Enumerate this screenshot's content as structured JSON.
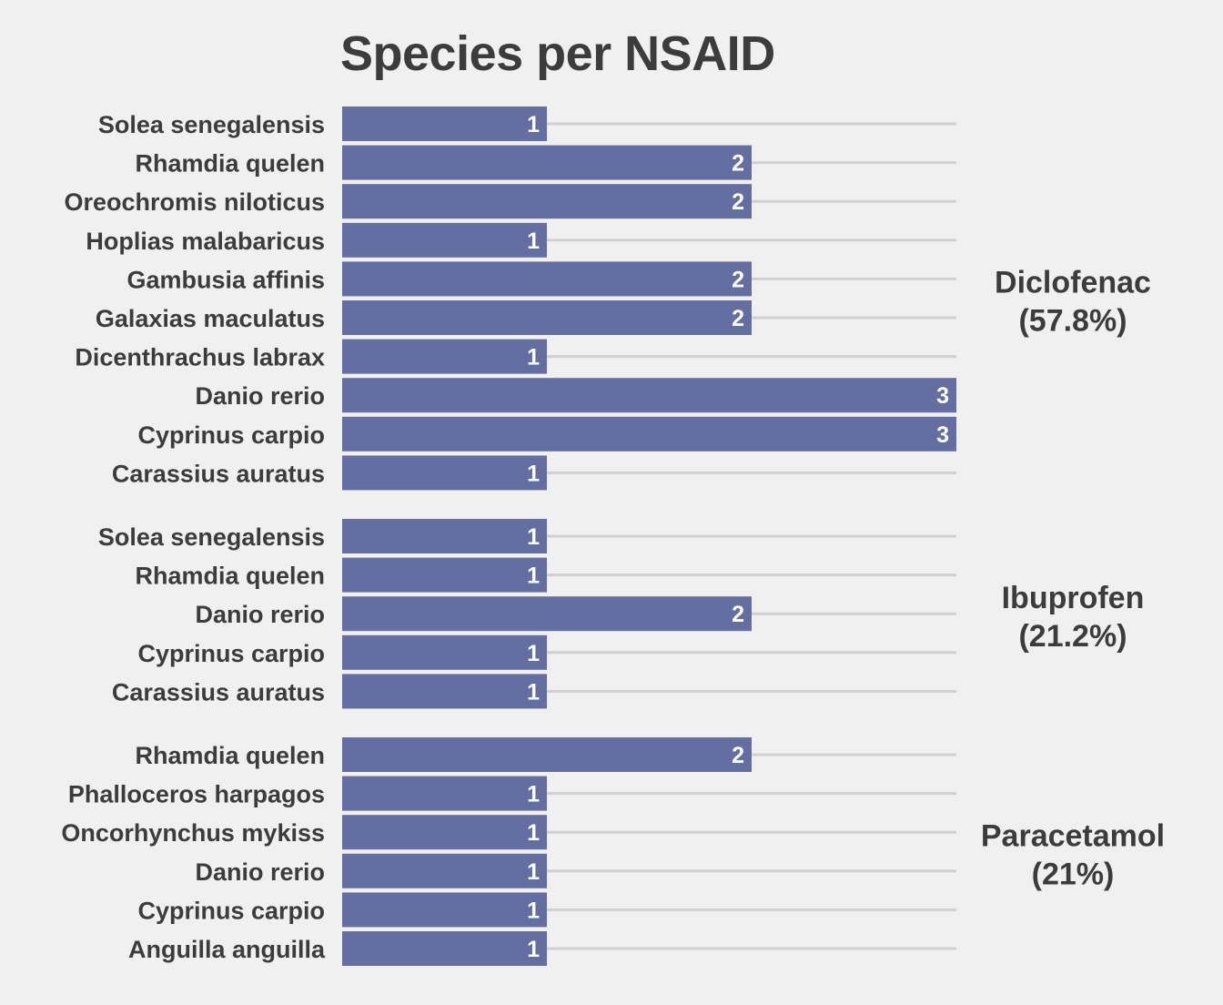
{
  "chart_data": {
    "type": "bar",
    "orientation": "horizontal",
    "title": "Species per NSAID",
    "xlim": [
      0,
      3
    ],
    "grid": "horizontal-guides",
    "colors": {
      "bar": "#646ea0",
      "grid": "#d0d0d0",
      "text": "#3c3c3c",
      "background": "#f0f0f0"
    },
    "groups": [
      {
        "name": "Diclofenac",
        "share": "(57.8%)",
        "categories": [
          "Solea senegalensis",
          "Rhamdia quelen",
          "Oreochromis niloticus",
          "Hoplias malabaricus",
          "Gambusia affinis",
          "Galaxias maculatus",
          "Dicenthrachus labrax",
          "Danio rerio",
          "Cyprinus carpio",
          "Carassius auratus"
        ],
        "values": [
          1,
          2,
          2,
          1,
          2,
          2,
          1,
          3,
          3,
          1
        ]
      },
      {
        "name": "Ibuprofen",
        "share": "(21.2%)",
        "categories": [
          "Solea senegalensis",
          "Rhamdia quelen",
          "Danio rerio",
          "Cyprinus carpio",
          "Carassius auratus"
        ],
        "values": [
          1,
          1,
          2,
          1,
          1
        ]
      },
      {
        "name": "Paracetamol",
        "share": "(21%)",
        "categories": [
          "Rhamdia quelen",
          "Phalloceros harpagos",
          "Oncorhynchus mykiss",
          "Danio rerio",
          "Cyprinus carpio",
          "Anguilla anguilla"
        ],
        "values": [
          2,
          1,
          1,
          1,
          1,
          1
        ]
      }
    ]
  }
}
